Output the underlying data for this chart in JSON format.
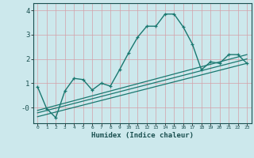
{
  "xlabel": "Humidex (Indice chaleur)",
  "xlim": [
    -0.5,
    23.5
  ],
  "ylim": [
    -0.65,
    4.3
  ],
  "background_color": "#cce8ec",
  "grid_color": "#b8d4d8",
  "line_color": "#1a7870",
  "xticks": [
    0,
    1,
    2,
    3,
    4,
    5,
    6,
    7,
    8,
    9,
    10,
    11,
    12,
    13,
    14,
    15,
    16,
    17,
    18,
    19,
    20,
    21,
    22,
    23
  ],
  "yticks": [
    0,
    1,
    2,
    3,
    4
  ],
  "ytick_labels": [
    "-0",
    "1",
    "2",
    "3",
    "4"
  ],
  "main_x": [
    0,
    1,
    2,
    3,
    4,
    5,
    6,
    7,
    8,
    9,
    10,
    11,
    12,
    13,
    14,
    15,
    16,
    17,
    18,
    19,
    20,
    21,
    22,
    23
  ],
  "main_y": [
    0.85,
    -0.05,
    -0.42,
    0.68,
    1.2,
    1.15,
    0.72,
    1.0,
    0.88,
    1.55,
    2.25,
    2.9,
    3.35,
    3.35,
    3.85,
    3.85,
    3.32,
    2.62,
    1.55,
    1.88,
    1.82,
    2.18,
    2.18,
    1.82
  ],
  "line2_x": [
    0,
    23
  ],
  "line2_y": [
    -0.12,
    2.18
  ],
  "line3_x": [
    0,
    23
  ],
  "line3_y": [
    -0.22,
    2.0
  ],
  "line4_x": [
    0,
    23
  ],
  "line4_y": [
    -0.38,
    1.82
  ]
}
